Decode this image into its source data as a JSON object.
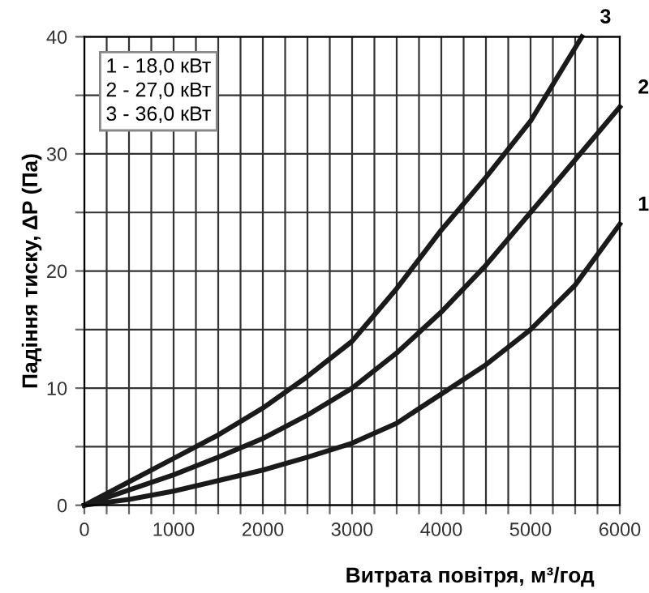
{
  "chart_data": {
    "type": "line",
    "xlabel": "Витрата повітря, м³/год",
    "ylabel": "Падіння тиску, ΔР (Па)",
    "series": [
      {
        "name": "1",
        "color": "#1a1a1a",
        "x": [
          0,
          500,
          1000,
          1500,
          2000,
          2500,
          3000,
          3500,
          4000,
          4500,
          5000,
          5500,
          6000
        ],
        "values": [
          0,
          0.5,
          1.2,
          2.1,
          3,
          4.1,
          5.3,
          7,
          9.5,
          12,
          15,
          18.8,
          24
        ]
      },
      {
        "name": "2",
        "color": "#1a1a1a",
        "x": [
          0,
          500,
          1000,
          1500,
          2000,
          2500,
          3000,
          3500,
          4000,
          4500,
          5000,
          5500,
          6000
        ],
        "values": [
          0,
          1.3,
          2.6,
          4.1,
          5.7,
          7.7,
          10,
          13,
          16.5,
          20.5,
          25,
          29.5,
          34
        ]
      },
      {
        "name": "3",
        "color": "#1a1a1a",
        "x": [
          0,
          500,
          1000,
          1500,
          2000,
          2500,
          3000,
          3500,
          4000,
          4500,
          5000,
          5575
        ],
        "values": [
          0,
          2,
          4,
          6,
          8.3,
          11,
          14,
          18.5,
          23.5,
          28,
          32.8,
          40
        ]
      }
    ],
    "annotations": [
      "1 - 18,0 кВт",
      "2 - 27,0 кВт",
      "3 - 36,0 кВт"
    ],
    "xlim": [
      0,
      6000
    ],
    "ylim": [
      0,
      40
    ],
    "xticks": [
      0,
      {
        "value": 250,
        "label": null
      },
      {
        "value": 500,
        "label": null
      },
      {
        "value": 750,
        "label": null
      },
      1000,
      {
        "value": 1250,
        "label": null
      },
      {
        "value": 1500,
        "label": null
      },
      {
        "value": 1750,
        "label": null
      },
      2000,
      {
        "value": 2250,
        "label": null
      },
      {
        "value": 2500,
        "label": null
      },
      {
        "value": 2750,
        "label": null
      },
      3000,
      {
        "value": 3250,
        "label": null
      },
      {
        "value": 3500,
        "label": null
      },
      {
        "value": 3750,
        "label": null
      },
      4000,
      {
        "value": 4250,
        "label": null
      },
      {
        "value": 4500,
        "label": null
      },
      {
        "value": 4750,
        "label": null
      },
      5000,
      {
        "value": 5250,
        "label": null
      },
      {
        "value": 5500,
        "label": null
      },
      {
        "value": 5750,
        "label": null
      },
      6000
    ],
    "yticks": [
      0,
      {
        "value": 5,
        "label": null
      },
      10,
      {
        "value": 15,
        "label": null
      },
      20,
      {
        "value": 25,
        "label": null
      },
      30,
      {
        "value": 35,
        "label": null
      },
      40
    ],
    "grid": true,
    "marker": "none",
    "line_style": "solid",
    "legend": false
  }
}
